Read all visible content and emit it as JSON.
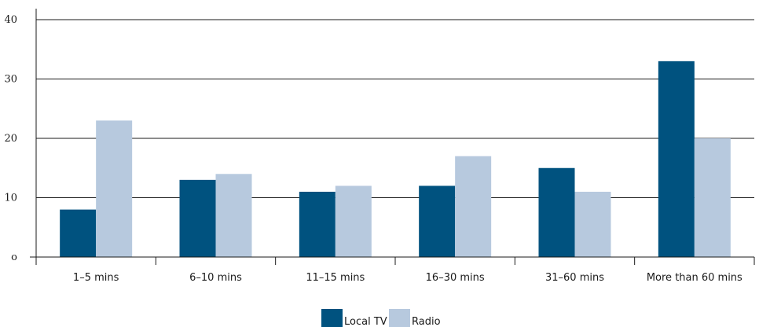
{
  "chart_data": {
    "type": "bar",
    "categories": [
      "1–5 mins",
      "6–10 mins",
      "11–15 mins",
      "16–30 mins",
      "31–60 mins",
      "More than 60 mins"
    ],
    "series": [
      {
        "name": "Local TV",
        "values": [
          8,
          13,
          11,
          12,
          15,
          33
        ],
        "color": "#00527f"
      },
      {
        "name": "Radio",
        "values": [
          23,
          14,
          12,
          17,
          11,
          20
        ],
        "color": "#b7c9de"
      }
    ],
    "yticks": [
      {
        "value": 0,
        "label": "o"
      },
      {
        "value": 10,
        "label": "10"
      },
      {
        "value": 20,
        "label": "20"
      },
      {
        "value": 30,
        "label": "30"
      },
      {
        "value": 40,
        "label": "40"
      }
    ],
    "ylim": [
      0,
      40
    ],
    "title": "",
    "xlabel": "",
    "ylabel": "",
    "grid": true,
    "legend_position": "bottom-center"
  }
}
